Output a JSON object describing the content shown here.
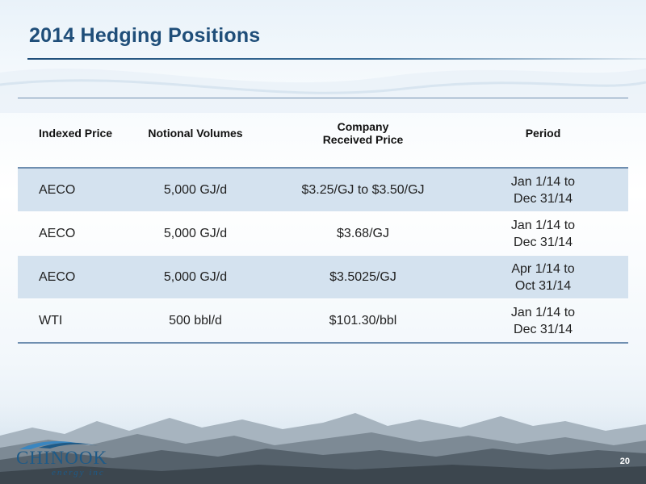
{
  "slide": {
    "title": "2014 Hedging Positions",
    "page_number": "20"
  },
  "table": {
    "headers": {
      "indexed_price": "Indexed Price",
      "notional_volumes": "Notional  Volumes",
      "company_price_line1": "Company",
      "company_price_line2": "Received Price",
      "period": "Period"
    },
    "rows": [
      {
        "index": "AECO",
        "volume": "5,000 GJ/d",
        "price": "$3.25/GJ to $3.50/GJ",
        "period_start": "Jan 1/14 to",
        "period_end": "Dec 31/14"
      },
      {
        "index": "AECO",
        "volume": "5,000 GJ/d",
        "price": "$3.68/GJ",
        "period_start": "Jan 1/14 to",
        "period_end": "Dec 31/14"
      },
      {
        "index": "AECO",
        "volume": "5,000  GJ/d",
        "price": "$3.5025/GJ",
        "period_start": "Apr 1/14 to",
        "period_end": "Oct 31/14"
      },
      {
        "index": "WTI",
        "volume": "500 bbl/d",
        "price": "$101.30/bbl",
        "period_start": "Jan 1/14 to",
        "period_end": "Dec 31/14"
      }
    ]
  },
  "logo": {
    "name": "CHINOOK",
    "tagline": "energy inc"
  },
  "colors": {
    "title": "#1f4e79",
    "row_shade": "#d4e2ef",
    "rule": "#6f8fb0",
    "logo": "#1e5a87"
  }
}
